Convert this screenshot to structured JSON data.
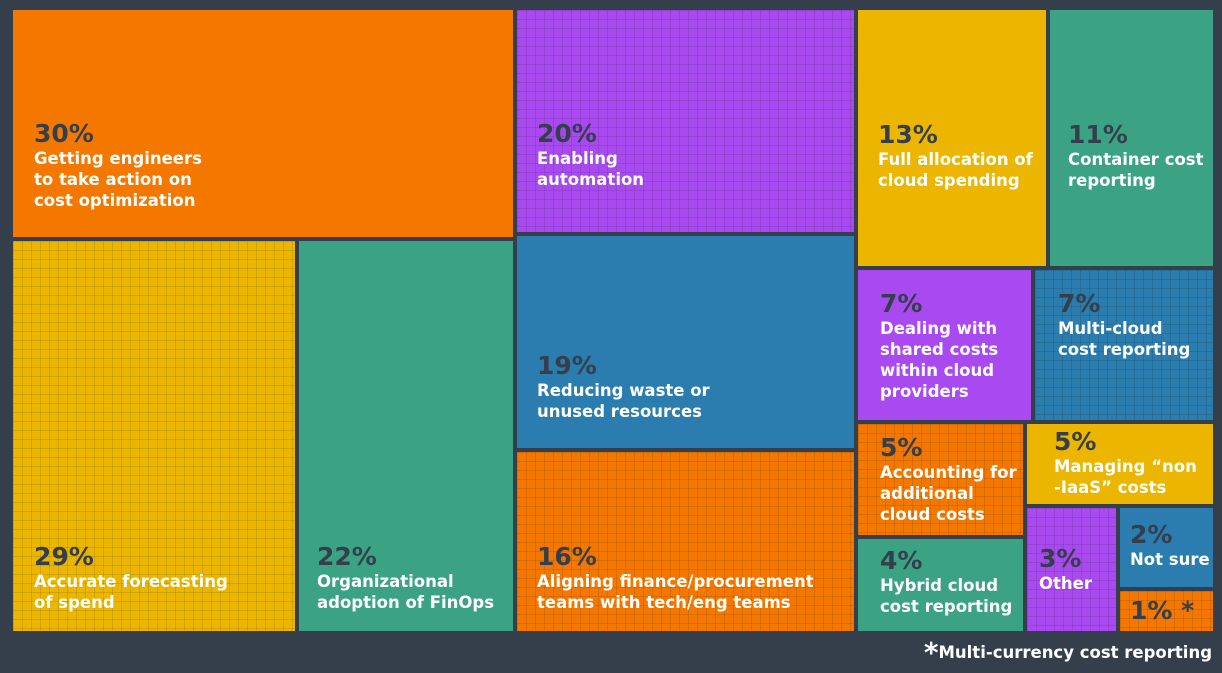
{
  "chart_data": {
    "type": "treemap",
    "colors": {
      "orange": "#f47800",
      "purple": "#a94af1",
      "yellow": "#ebb500",
      "green": "#3ba383",
      "blue": "#2a7dae",
      "background": "#353f4b",
      "value_text": "#353f4b",
      "label_text": "#ffffff"
    },
    "items": [
      {
        "value_label": "30%",
        "label": [
          "Getting engineers",
          "to take action on",
          "cost optimization"
        ],
        "value": 30,
        "color": "orange",
        "grid": false
      },
      {
        "value_label": "29%",
        "label": [
          "Accurate forecasting",
          "of spend"
        ],
        "value": 29,
        "color": "yellow",
        "grid": true
      },
      {
        "value_label": "22%",
        "label": [
          "Organizational",
          "adoption of FinOps"
        ],
        "value": 22,
        "color": "green",
        "grid": false
      },
      {
        "value_label": "20%",
        "label": [
          "Enabling",
          "automation"
        ],
        "value": 20,
        "color": "purple",
        "grid": true
      },
      {
        "value_label": "19%",
        "label": [
          "Reducing waste or",
          "unused resources"
        ],
        "value": 19,
        "color": "blue",
        "grid": false
      },
      {
        "value_label": "16%",
        "label": [
          "Aligning finance/procurement",
          "teams with tech/eng teams"
        ],
        "value": 16,
        "color": "orange",
        "grid": true
      },
      {
        "value_label": "13%",
        "label": [
          "Full allocation of",
          "cloud spending"
        ],
        "value": 13,
        "color": "yellow",
        "grid": false
      },
      {
        "value_label": "11%",
        "label": [
          "Container cost",
          "reporting"
        ],
        "value": 11,
        "color": "green",
        "grid": false
      },
      {
        "value_label": "7%",
        "label": [
          "Dealing with",
          "shared costs",
          "within cloud",
          "providers"
        ],
        "value": 7,
        "color": "purple",
        "grid": false
      },
      {
        "value_label": "7%",
        "label": [
          "Multi-cloud",
          "cost reporting"
        ],
        "value": 7,
        "color": "blue",
        "grid": true
      },
      {
        "value_label": "5%",
        "label": [
          "Accounting for",
          "additional",
          "cloud costs"
        ],
        "value": 5,
        "color": "orange",
        "grid": true
      },
      {
        "value_label": "5%",
        "label": [
          "Managing “non",
          "-IaaS” costs"
        ],
        "value": 5,
        "color": "yellow",
        "grid": false
      },
      {
        "value_label": "4%",
        "label": [
          "Hybrid cloud",
          "cost reporting"
        ],
        "value": 4,
        "color": "green",
        "grid": false
      },
      {
        "value_label": "3%",
        "label": [
          "Other"
        ],
        "value": 3,
        "color": "purple",
        "grid": true
      },
      {
        "value_label": "2%",
        "label": [
          "Not sure"
        ],
        "value": 2,
        "color": "blue",
        "grid": false
      },
      {
        "value_label": "1% *",
        "label": [],
        "value": 1,
        "color": "orange",
        "grid": true
      }
    ],
    "footnote": {
      "marker": "*",
      "text": "Multi-currency cost reporting"
    }
  }
}
